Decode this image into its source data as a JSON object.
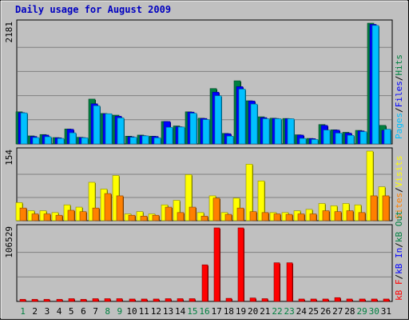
{
  "title": "Daily usage for August 2009",
  "colors": {
    "background": "#C0C0C0",
    "title": "#0000C0",
    "hits": "#008040",
    "files": "#0000FF",
    "pages": "#00C0FF",
    "visits": "#FFFF00",
    "sites": "#FF8000",
    "kb_in": "#0000FF",
    "kb_out": "#008040",
    "kb_f": "#FF0000",
    "weekday_label": "#000000",
    "weekend_label": "#008040"
  },
  "chart_data": [
    {
      "type": "bar",
      "panel": "hits-files-pages",
      "categories": [
        "1",
        "2",
        "3",
        "4",
        "5",
        "6",
        "7",
        "8",
        "9",
        "10",
        "11",
        "12",
        "13",
        "14",
        "15",
        "16",
        "17",
        "18",
        "19",
        "20",
        "21",
        "22",
        "23",
        "24",
        "25",
        "26",
        "27",
        "28",
        "29",
        "30",
        "31"
      ],
      "ymax_label": "2181",
      "ylim": [
        0,
        2181
      ],
      "series": [
        {
          "name": "Hits",
          "values": [
            580,
            145,
            170,
            115,
            270,
            120,
            810,
            550,
            520,
            140,
            160,
            140,
            405,
            325,
            580,
            465,
            1000,
            190,
            1140,
            780,
            490,
            465,
            460,
            165,
            100,
            350,
            255,
            210,
            245,
            2181,
            335
          ]
        },
        {
          "name": "Files",
          "values": [
            565,
            135,
            160,
            110,
            265,
            115,
            725,
            545,
            500,
            130,
            150,
            135,
            405,
            310,
            575,
            460,
            935,
            185,
            1035,
            775,
            475,
            460,
            455,
            160,
            95,
            335,
            250,
            195,
            235,
            2160,
            245
          ]
        },
        {
          "name": "Pages",
          "values": [
            560,
            115,
            130,
            100,
            200,
            110,
            690,
            545,
            470,
            120,
            145,
            110,
            300,
            305,
            555,
            440,
            870,
            140,
            990,
            720,
            455,
            455,
            455,
            100,
            80,
            250,
            195,
            155,
            220,
            2140,
            265
          ]
        }
      ],
      "legend": [
        "Pages",
        "Files",
        "Hits"
      ]
    },
    {
      "type": "bar",
      "panel": "visits-sites",
      "categories": [
        "1",
        "2",
        "3",
        "4",
        "5",
        "6",
        "7",
        "8",
        "9",
        "10",
        "11",
        "12",
        "13",
        "14",
        "15",
        "16",
        "17",
        "18",
        "19",
        "20",
        "21",
        "22",
        "23",
        "24",
        "25",
        "26",
        "27",
        "28",
        "29",
        "30",
        "31"
      ],
      "ymax_label": "154",
      "ylim": [
        0,
        154
      ],
      "series": [
        {
          "name": "Visits",
          "values": [
            40,
            22,
            22,
            18,
            35,
            30,
            85,
            70,
            100,
            15,
            20,
            15,
            35,
            45,
            102,
            18,
            55,
            18,
            50,
            125,
            88,
            18,
            18,
            22,
            25,
            38,
            33,
            38,
            35,
            154,
            75
          ]
        },
        {
          "name": "Sites",
          "values": [
            28,
            15,
            15,
            12,
            23,
            20,
            28,
            60,
            55,
            12,
            10,
            12,
            30,
            18,
            30,
            10,
            50,
            14,
            28,
            20,
            18,
            15,
            14,
            15,
            15,
            22,
            20,
            22,
            18,
            55,
            55
          ]
        }
      ],
      "legend": [
        "Sites",
        "Visits"
      ]
    },
    {
      "type": "bar",
      "panel": "kbytes",
      "categories": [
        "1",
        "2",
        "3",
        "4",
        "5",
        "6",
        "7",
        "8",
        "9",
        "10",
        "11",
        "12",
        "13",
        "14",
        "15",
        "16",
        "17",
        "18",
        "19",
        "20",
        "21",
        "22",
        "23",
        "24",
        "25",
        "26",
        "27",
        "28",
        "29",
        "30",
        "31"
      ],
      "ymax_label": "106529",
      "ylim": [
        0,
        106529
      ],
      "series": [
        {
          "name": "kB F",
          "values": [
            3000,
            3000,
            3000,
            3000,
            4000,
            3000,
            4000,
            4000,
            4000,
            3500,
            3500,
            3500,
            4000,
            4000,
            4000,
            53000,
            106529,
            4500,
            106529,
            5000,
            4000,
            56000,
            56000,
            3500,
            3500,
            3500,
            5500,
            3500,
            3500,
            3500,
            3500
          ]
        }
      ],
      "legend": [
        "kB F",
        "kB In",
        "kB Out"
      ]
    }
  ],
  "x_axis": {
    "days": [
      "1",
      "2",
      "3",
      "4",
      "5",
      "6",
      "7",
      "8",
      "9",
      "10",
      "11",
      "12",
      "13",
      "14",
      "15",
      "16",
      "17",
      "18",
      "19",
      "20",
      "21",
      "22",
      "23",
      "24",
      "25",
      "26",
      "27",
      "28",
      "29",
      "30",
      "31"
    ],
    "weekend_days": [
      "1",
      "8",
      "9",
      "15",
      "16",
      "22",
      "23",
      "29",
      "30"
    ]
  },
  "right_legends": {
    "top": [
      {
        "text": "Pages",
        "color": "#00C0FF"
      },
      {
        "text": "/",
        "color": "#000000"
      },
      {
        "text": "Files",
        "color": "#0000FF"
      },
      {
        "text": "/",
        "color": "#000000"
      },
      {
        "text": "Hits",
        "color": "#008040"
      }
    ],
    "middle": [
      {
        "text": "Sites",
        "color": "#FF8000"
      },
      {
        "text": "/",
        "color": "#000000"
      },
      {
        "text": "Visits",
        "color": "#FFFF00"
      }
    ],
    "bottom": [
      {
        "text": "kB F",
        "color": "#FF0000"
      },
      {
        "text": "/",
        "color": "#000000"
      },
      {
        "text": "kB In",
        "color": "#0000FF"
      },
      {
        "text": "/",
        "color": "#000000"
      },
      {
        "text": "kB Out",
        "color": "#008040"
      }
    ]
  }
}
